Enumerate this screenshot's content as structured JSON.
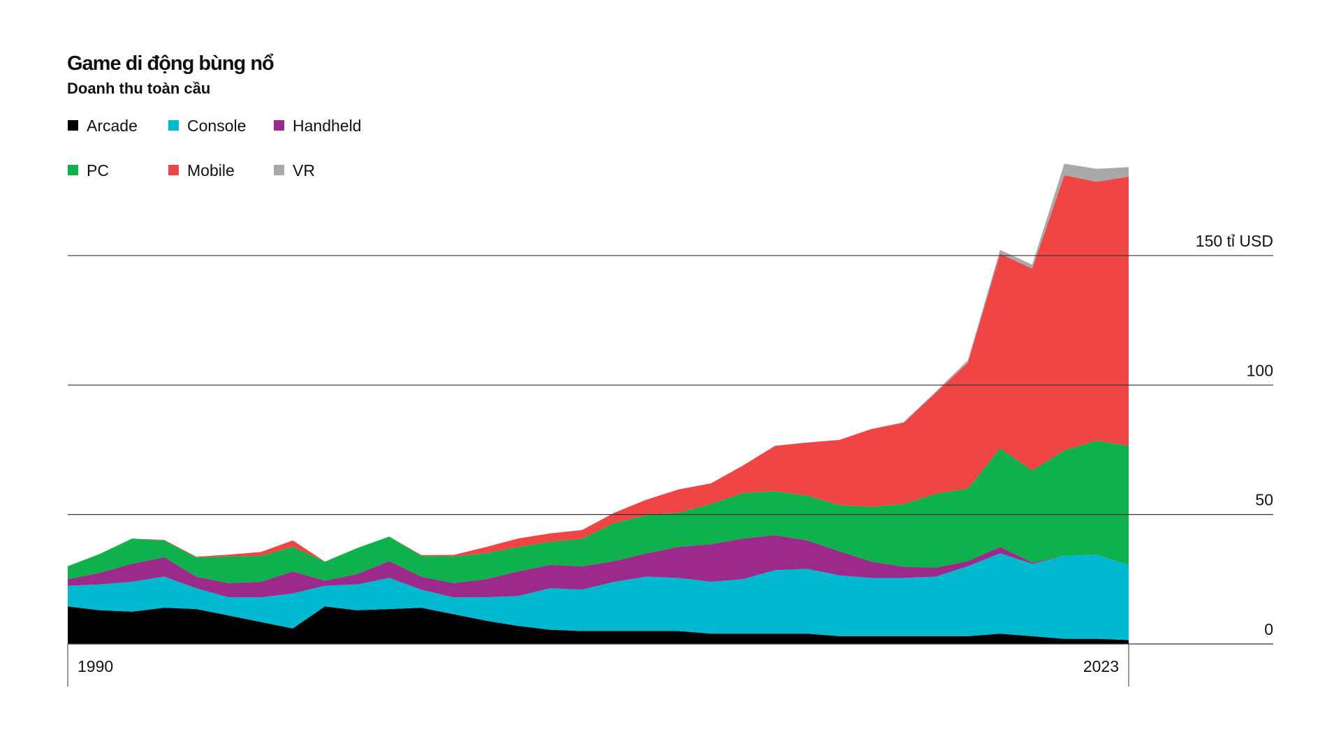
{
  "chart_data": {
    "type": "stacked_area",
    "title": "Game di động bùng nổ",
    "subtitle": "Doanh thu toàn cầu",
    "x": [
      1990,
      1991,
      1992,
      1993,
      1994,
      1995,
      1996,
      1997,
      1998,
      1999,
      2000,
      2001,
      2002,
      2003,
      2004,
      2005,
      2006,
      2007,
      2008,
      2009,
      2010,
      2011,
      2012,
      2013,
      2014,
      2015,
      2016,
      2017,
      2018,
      2019,
      2020,
      2021,
      2022,
      2023
    ],
    "xlim": [
      1990,
      2023
    ],
    "xticks": [
      1990,
      2023
    ],
    "ylim": [
      0,
      190
    ],
    "yticks": [
      0,
      50,
      100,
      {
        "value": 150,
        "label": "150 tỉ USD"
      }
    ],
    "grid": true,
    "series": [
      {
        "name": "Arcade",
        "color": "#000000",
        "values": [
          14.5,
          13,
          12.5,
          14,
          13.5,
          11,
          8.5,
          6,
          14.5,
          13,
          13.5,
          14,
          11.5,
          9,
          7,
          5.5,
          5,
          5,
          5,
          5,
          4,
          4,
          4,
          4,
          3,
          3,
          3,
          3,
          3,
          4,
          3,
          2,
          2,
          1.5
        ]
      },
      {
        "name": "Console",
        "color": "#00b9d1",
        "values": [
          8,
          10,
          11.5,
          12,
          8,
          7,
          9.5,
          13.5,
          8,
          10,
          12,
          7,
          6.5,
          9,
          11.5,
          16,
          16,
          19,
          21,
          20.5,
          20,
          21,
          24.5,
          25,
          23.5,
          22.5,
          22.5,
          23,
          27,
          31,
          28,
          32,
          32.5,
          29
        ]
      },
      {
        "name": "Handheld",
        "color": "#9b2a8a",
        "values": [
          2.5,
          4.5,
          7,
          7.5,
          4.5,
          5.5,
          6,
          8.5,
          2,
          4,
          6.5,
          5,
          5.5,
          7,
          9.5,
          9,
          9,
          8,
          9,
          12,
          14.5,
          15.7,
          13.5,
          11,
          9.3,
          6.3,
          4.3,
          3.5,
          2,
          2.5,
          0.5,
          0,
          0,
          0
        ]
      },
      {
        "name": "PC",
        "color": "#0eb14b",
        "values": [
          5,
          7.3,
          9.7,
          6.5,
          7.4,
          10.3,
          10,
          9.5,
          7.3,
          10,
          9.5,
          8,
          10.3,
          10,
          9.4,
          8.9,
          10.7,
          14.7,
          14.7,
          13.2,
          15.5,
          17.6,
          17,
          17.3,
          17.8,
          21.2,
          24.2,
          28.5,
          28,
          38,
          35.5,
          40.8,
          44,
          46
        ]
      },
      {
        "name": "Mobile",
        "color": "#ef4545",
        "values": [
          0,
          0,
          0,
          0.2,
          0.3,
          0.7,
          1.5,
          2.5,
          0,
          0,
          0,
          0.3,
          0.6,
          2.4,
          3.3,
          3.3,
          3.3,
          4,
          6,
          9,
          8,
          10.6,
          17.5,
          20.5,
          25.2,
          30,
          31.4,
          39,
          48.6,
          75.2,
          78,
          106.2,
          100,
          104
        ]
      },
      {
        "name": "VR",
        "color": "#a9a9a9",
        "values": [
          0,
          0,
          0,
          0,
          0,
          0,
          0,
          0,
          0,
          0,
          0,
          0,
          0,
          0,
          0,
          0,
          0,
          0,
          0,
          0,
          0,
          0,
          0,
          0,
          0,
          0,
          0.3,
          0.5,
          1,
          1.5,
          1.5,
          4.5,
          5,
          3.7
        ]
      }
    ]
  }
}
